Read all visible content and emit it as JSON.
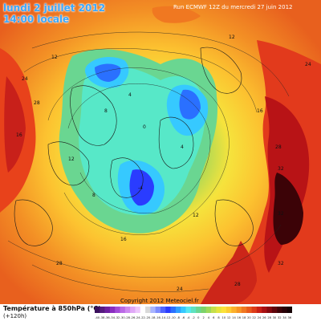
{
  "header": {
    "date": "lundi 2 juillet 2012",
    "time": "14:00 locale",
    "run": "Run ECMWF 12Z du mercredi 27 juin 2012"
  },
  "map": {
    "type": "northern hemisphere polar stereographic temperature map",
    "field": "Température à 850hPa (°C)",
    "isotherm_labels_warm": [
      "24",
      "28",
      "28",
      "32",
      "32",
      "32",
      "28",
      "24",
      "24",
      "28"
    ],
    "isotherm_labels_cool": [
      "12",
      "12",
      "16",
      "16",
      "12",
      "8",
      "4",
      "0",
      "-4",
      "4",
      "8",
      "12",
      "16"
    ],
    "palette_note": "blue cold pools near pole, green/yellow mid latitudes, red/black heat over continents"
  },
  "copyright": "Copyright 2012 Meteociel.fr",
  "legend": {
    "title": "Température à 850hPa (°C)",
    "subtitle": "(+120h)",
    "ticks": [
      "-40",
      "-38",
      "-36",
      "-34",
      "-32",
      "-30",
      "-28",
      "-26",
      "-24",
      "-22",
      "-20",
      "-18",
      "-16",
      "-14",
      "-12",
      "-10",
      "-8",
      "-6",
      "-4",
      "-2",
      "0",
      "2",
      "4",
      "6",
      "8",
      "10",
      "12",
      "14",
      "16",
      "18",
      "20",
      "22",
      "24",
      "26",
      "28",
      "30",
      "32",
      "34",
      "36"
    ],
    "colors": [
      "#3a0f5c",
      "#561a80",
      "#6f1fa0",
      "#8a2ec0",
      "#a44bd8",
      "#ba6ae6",
      "#cf89f0",
      "#e0a8f7",
      "#eec7fb",
      "#ffffff",
      "#d9d9d9",
      "#a8b4ff",
      "#7d8cff",
      "#4f63ff",
      "#2a3cff",
      "#2a70ff",
      "#2fa0ff",
      "#36c9ff",
      "#57e8f0",
      "#5ee2c0",
      "#6ad691",
      "#7cd26a",
      "#9ed85a",
      "#c4e04b",
      "#e5e43e",
      "#fbe23a",
      "#fdcc33",
      "#fbb02b",
      "#f79526",
      "#f07821",
      "#e85a1c",
      "#dd3c18",
      "#c82016",
      "#a81012",
      "#85090f",
      "#5f050b",
      "#3e0308",
      "#280207",
      "#150104"
    ]
  }
}
